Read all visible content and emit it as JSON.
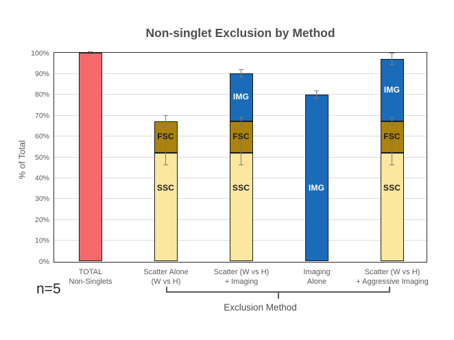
{
  "chart_data": {
    "type": "bar",
    "stacked": true,
    "title": "Non-singlet Exclusion by Method",
    "ylabel": "% of Total",
    "xlabel": "",
    "ylim": [
      0,
      100
    ],
    "grid": true,
    "legend": false,
    "annotation": "n=5",
    "yticks": [
      {
        "value": 0,
        "label": "0%"
      },
      {
        "value": 10,
        "label": "10%"
      },
      {
        "value": 20,
        "label": "20%"
      },
      {
        "value": 30,
        "label": "30%"
      },
      {
        "value": 40,
        "label": "40%"
      },
      {
        "value": 50,
        "label": "50%"
      },
      {
        "value": 60,
        "label": "60%"
      },
      {
        "value": 70,
        "label": "70%"
      },
      {
        "value": 80,
        "label": "80%"
      },
      {
        "value": 90,
        "label": "90%"
      },
      {
        "value": 100,
        "label": "100%"
      }
    ],
    "bars": [
      {
        "category_lines": [
          "TOTAL",
          "Non-Singlets"
        ],
        "segments": [
          {
            "name": "TOTAL",
            "value": 100,
            "color": "#F5696B",
            "label": "",
            "label_color": "#1A1A1A",
            "label_at": null
          }
        ],
        "error_bars": [
          {
            "at": 100,
            "lo": 99.3,
            "hi": 100.6
          }
        ]
      },
      {
        "category_lines": [
          "Scatter Alone",
          "(W vs H)"
        ],
        "segments": [
          {
            "name": "SSC",
            "value": 52,
            "color": "#FCE79E",
            "label": "SSC",
            "label_color": "#1A1A1A",
            "label_at": 35
          },
          {
            "name": "FSC",
            "value": 15,
            "color": "#AA820D",
            "label": "FSC",
            "label_color": "#1A1A1A",
            "label_at": 59.5
          }
        ],
        "error_bars": [
          {
            "at": 67,
            "lo": 64,
            "hi": 70
          },
          {
            "at": 52,
            "lo": 46,
            "hi": 58
          }
        ]
      },
      {
        "category_lines": [
          "Scatter (W vs H)",
          "+ Imaging"
        ],
        "segments": [
          {
            "name": "SSC",
            "value": 52,
            "color": "#FCE79E",
            "label": "SSC",
            "label_color": "#1A1A1A",
            "label_at": 35
          },
          {
            "name": "FSC",
            "value": 15,
            "color": "#AA820D",
            "label": "FSC",
            "label_color": "#1A1A1A",
            "label_at": 59.5
          },
          {
            "name": "IMG",
            "value": 23,
            "color": "#1A6CB8",
            "label": "IMG",
            "label_color": "#FFFFFF",
            "label_at": 78.5
          }
        ],
        "error_bars": [
          {
            "at": 90,
            "lo": 88,
            "hi": 92
          },
          {
            "at": 67,
            "lo": 65,
            "hi": 69
          },
          {
            "at": 52,
            "lo": 46,
            "hi": 58
          }
        ]
      },
      {
        "category_lines": [
          "Imaging",
          "Alone"
        ],
        "segments": [
          {
            "name": "IMG",
            "value": 80,
            "color": "#1A6CB8",
            "label": "IMG",
            "label_color": "#FFFFFF",
            "label_at": 35
          }
        ],
        "error_bars": [
          {
            "at": 80,
            "lo": 78,
            "hi": 82
          }
        ]
      },
      {
        "category_lines": [
          "Scatter (W vs H)",
          "+ Aggressive Imaging"
        ],
        "segments": [
          {
            "name": "SSC",
            "value": 52,
            "color": "#FCE79E",
            "label": "SSC",
            "label_color": "#1A1A1A",
            "label_at": 35
          },
          {
            "name": "FSC",
            "value": 15,
            "color": "#AA820D",
            "label": "FSC",
            "label_color": "#1A1A1A",
            "label_at": 59.5
          },
          {
            "name": "IMG",
            "value": 30,
            "color": "#1A6CB8",
            "label": "IMG",
            "label_color": "#FFFFFF",
            "label_at": 82
          }
        ],
        "error_bars": [
          {
            "at": 97,
            "lo": 94,
            "hi": 100
          },
          {
            "at": 67,
            "lo": 65,
            "hi": 69
          },
          {
            "at": 52,
            "lo": 46,
            "hi": 58
          }
        ]
      }
    ],
    "bracket": {
      "label": "Exclusion Method",
      "from_bar": 1,
      "to_bar": 4
    },
    "colors": {
      "bar_border": "#1A1A1A",
      "grid": "#DCDCDC",
      "axis_border": "#2B2B2B",
      "error": "#7A7A7A",
      "title_text": "#4D4D4D",
      "tick_text": "#595959",
      "annotation_text": "#262626",
      "total": "#F5696B",
      "ssc": "#FCE79E",
      "fsc": "#AA820D",
      "img": "#1A6CB8"
    }
  }
}
